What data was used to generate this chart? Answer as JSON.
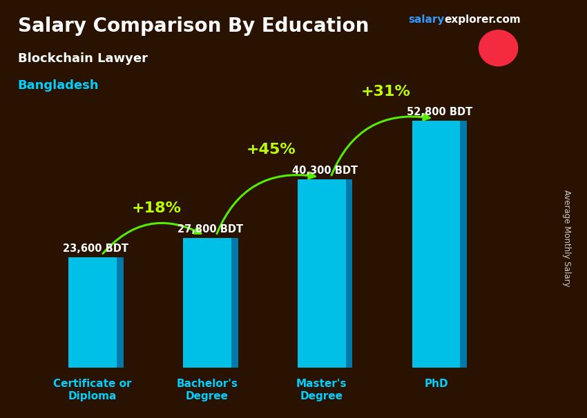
{
  "title": "Salary Comparison By Education",
  "subtitle_job": "Blockchain Lawyer",
  "subtitle_country": "Bangladesh",
  "ylabel": "Average Monthly Salary",
  "categories": [
    "Certificate or\nDiploma",
    "Bachelor's\nDegree",
    "Master's\nDegree",
    "PhD"
  ],
  "values": [
    23600,
    27800,
    40300,
    52800
  ],
  "value_labels": [
    "23,600 BDT",
    "27,800 BDT",
    "40,300 BDT",
    "52,800 BDT"
  ],
  "pct_labels": [
    "+18%",
    "+45%",
    "+31%"
  ],
  "bar_color_face": "#00c0e8",
  "bar_color_side": "#007aaa",
  "bar_color_top": "#40d8ff",
  "bg_color": "#2a1200",
  "title_color": "#ffffff",
  "subtitle_job_color": "#ffffff",
  "subtitle_country_color": "#00cfff",
  "value_label_color": "#ffffff",
  "pct_label_color": "#bbff00",
  "arrow_color": "#55ee00",
  "xlabel_color": "#00cfff",
  "ylabel_color": "#cccccc",
  "website_salary_color": "#3399ff",
  "website_explorer_color": "#ffffff",
  "flag_green": "#006a4e",
  "flag_red": "#f42a41",
  "figsize": [
    8.5,
    6.06
  ],
  "dpi": 100
}
